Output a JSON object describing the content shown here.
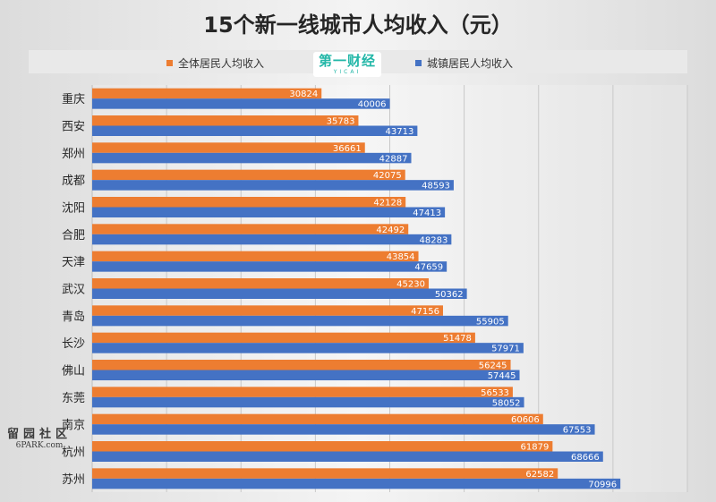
{
  "chart_data": {
    "type": "bar",
    "orientation": "horizontal",
    "title": "15个新一线城市人均收入（元）",
    "categories": [
      "重庆",
      "西安",
      "郑州",
      "成都",
      "沈阳",
      "合肥",
      "天津",
      "武汉",
      "青岛",
      "长沙",
      "佛山",
      "东莞",
      "南京",
      "杭州",
      "苏州"
    ],
    "series": [
      {
        "name": "全体居民人均收入",
        "color": "#ed7d31",
        "values": [
          30824,
          35783,
          36661,
          42075,
          42128,
          42492,
          43854,
          45230,
          47156,
          51478,
          56245,
          56533,
          60606,
          61879,
          62582
        ]
      },
      {
        "name": "城镇居民人均收入",
        "color": "#4472c4",
        "values": [
          40006,
          43713,
          42887,
          48593,
          47413,
          48283,
          47659,
          50362,
          55905,
          57971,
          57445,
          58052,
          67553,
          68666,
          70996
        ]
      }
    ],
    "xlim": [
      0,
      80000
    ],
    "grid": true,
    "legend_position": "top"
  },
  "logo": {
    "main": "第一财经",
    "sub": "YICAI"
  },
  "watermark": {
    "main": "留园社区",
    "sub": "6PARK.com"
  }
}
